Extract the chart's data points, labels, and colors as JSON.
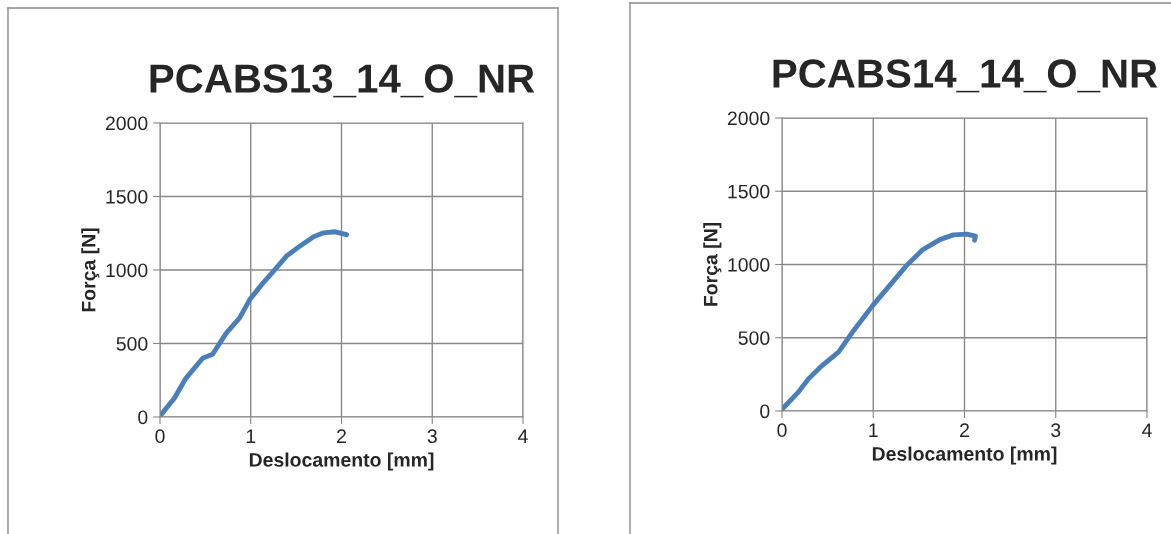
{
  "chart_data": [
    {
      "type": "line",
      "title": "PCABS13_14_O_NR",
      "xlabel": "Deslocamento [mm]",
      "ylabel": "Força [N]",
      "xlim": [
        0,
        4
      ],
      "ylim": [
        0,
        2000
      ],
      "xticks": [
        0,
        1,
        2,
        3,
        4
      ],
      "yticks": [
        0,
        500,
        1000,
        1500,
        2000
      ],
      "grid": true,
      "legend": false,
      "marker": "none",
      "line_style": "solid",
      "series": [
        {
          "color": "#4a7ebb",
          "x": [
            0,
            0.156,
            0.285,
            0.47,
            0.58,
            0.73,
            0.878,
            0.989,
            1.137,
            1.285,
            1.396,
            1.544,
            1.692,
            1.804,
            1.93,
            2.056
          ],
          "values": [
            7,
            126,
            263,
            400,
            427,
            571,
            674,
            799,
            913,
            1016,
            1096,
            1164,
            1226,
            1253,
            1260,
            1240
          ]
        }
      ]
    },
    {
      "type": "line",
      "title": "PCABS14_14_O_NR",
      "xlabel": "Deslocamento [mm]",
      "ylabel": "Força [N]",
      "xlim": [
        0,
        4
      ],
      "ylim": [
        0,
        2000
      ],
      "xticks": [
        0,
        1,
        2,
        3,
        4
      ],
      "yticks": [
        0,
        500,
        1000,
        1500,
        2000
      ],
      "grid": true,
      "legend": false,
      "marker": "none",
      "line_style": "solid",
      "series": [
        {
          "color": "#4a7ebb",
          "x": [
            0,
            0.174,
            0.285,
            0.433,
            0.619,
            0.767,
            0.989,
            1.174,
            1.359,
            1.544,
            1.73,
            1.878,
            2.026,
            2.12,
            2.11
          ],
          "values": [
            11,
            125,
            216,
            307,
            402,
            534,
            716,
            852,
            989,
            1102,
            1170,
            1202,
            1207,
            1193,
            1166
          ]
        }
      ]
    }
  ]
}
